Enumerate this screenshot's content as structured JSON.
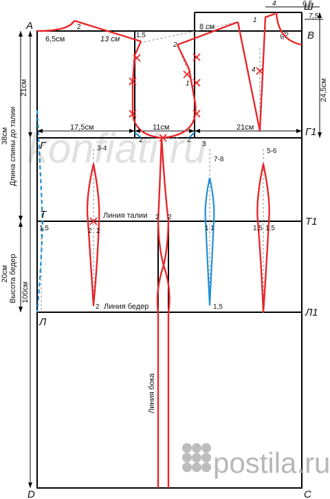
{
  "points": {
    "A": "A",
    "B": "B",
    "Sh": "Ш",
    "G": "Г",
    "G1": "Г1",
    "T": "Т",
    "T1": "Т1",
    "L": "Л",
    "L1": "Л1",
    "D": "D",
    "C": "C"
  },
  "measurements": {
    "back_neck_width": "6,5см",
    "shoulder_back": "13 см",
    "chest_back_width": "17,5см",
    "armhole_width": "11см",
    "chest_front_width": "21см",
    "shoulder_front_slope": "8 см",
    "front_neck_top": "4",
    "front_neck_width": "6,5",
    "front_neck_depth": "7,5",
    "front_neck_diag": "6,5",
    "front_rise": "24,5см",
    "back_length_total": "38см",
    "back_length_label": "Длина спины до талии",
    "armhole_depth": "21см",
    "hip_height_value": "20см",
    "hip_height_label": "Высота бедер",
    "total_length": "100см"
  },
  "marks": {
    "m2_neck": "2",
    "m15_shoulder": "1,5",
    "m2_armhole_back": "2",
    "m1_armhole_back": "1",
    "m1_front_neck": "1",
    "m4_front": "4",
    "m2_armhole_bl": "2",
    "m2_armhole_br": "2",
    "m3": "3",
    "d34": "3-4",
    "d78": "7-8",
    "d56": "5-6",
    "w15_left": "1,5",
    "w2_dart_l": "2",
    "w2_dart_r": "2",
    "w2_side_l": "2",
    "w2_side_r": "2",
    "w1_l": "1",
    "w1_r": "1",
    "w15_fl": "1,5",
    "w15_fr": "1,5",
    "h2": "2",
    "h15": "1,5"
  },
  "lines": {
    "waist": "Линия талии",
    "hip": "Линия  бедер",
    "side": "Линия бока"
  },
  "watermark": "konfiati.ru",
  "logo": "postila.ru",
  "colors": {
    "construction": "#000000",
    "pattern": "#e8262a",
    "dart_blue": "#1e8fd6",
    "auxiliary": "#8a8a8a"
  }
}
